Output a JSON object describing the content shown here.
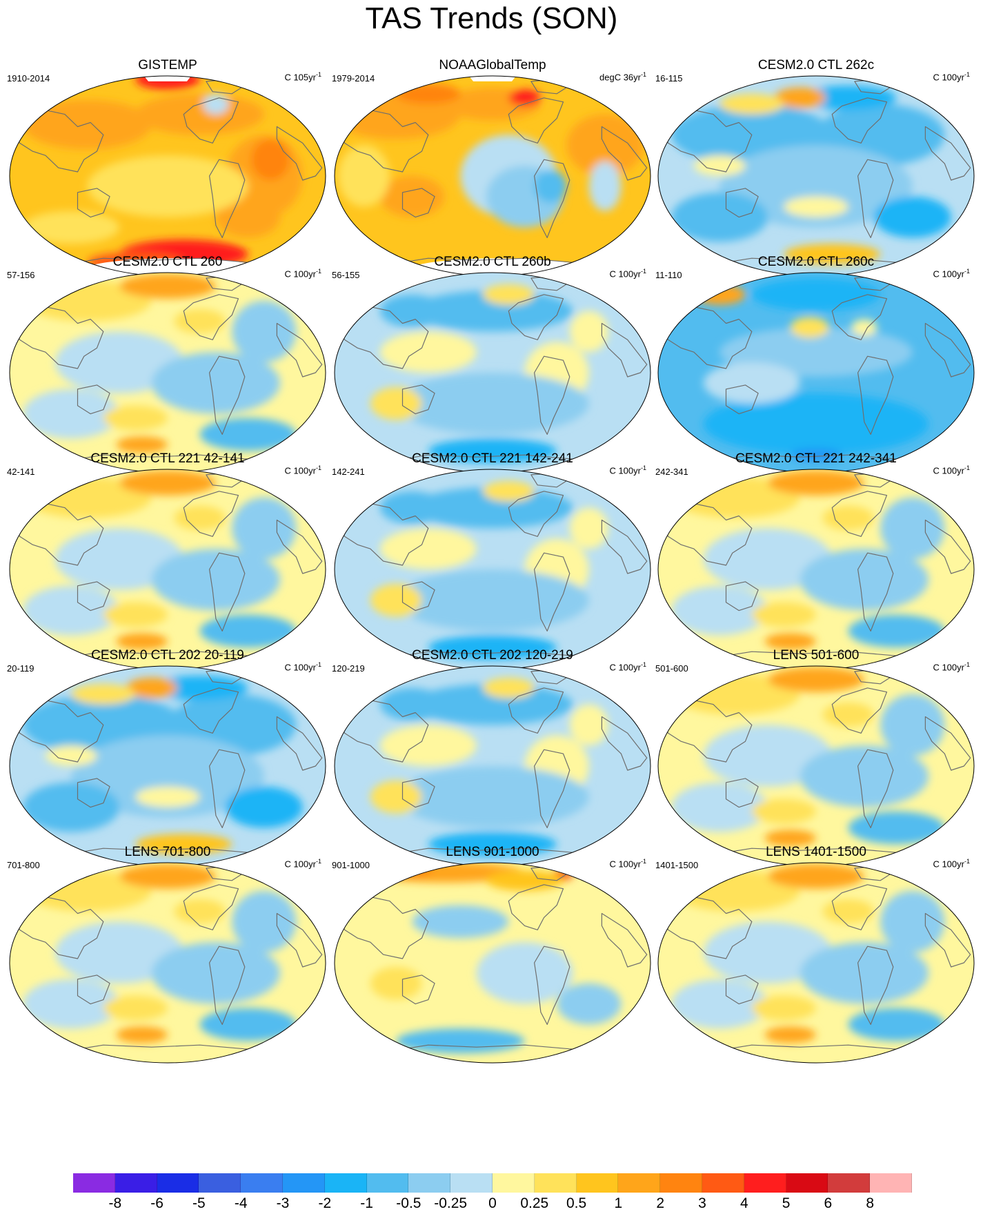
{
  "title": "TAS Trends (SON)",
  "panels": [
    {
      "title": "GISTEMP",
      "years": "1910-2014",
      "units": "C 105yr",
      "units_exp": "-1",
      "theme": "warm-strong",
      "missing_north": true,
      "missing_south": true
    },
    {
      "title": "NOAAGlobalTemp",
      "years": "1979-2014",
      "units": "degC 36yr",
      "units_exp": "-1",
      "theme": "noaa",
      "missing_north": true,
      "missing_south": true
    },
    {
      "title": "CESM2.0 CTL 262c",
      "years": "16-115",
      "units": "C 100yr",
      "units_exp": "-1",
      "theme": "cool"
    },
    {
      "title": "CESM2.0 CTL 260",
      "years": "57-156",
      "units": "C 100yr",
      "units_exp": "-1",
      "theme": "mixed-warm"
    },
    {
      "title": "CESM2.0 CTL 260b",
      "years": "56-155",
      "units": "C 100yr",
      "units_exp": "-1",
      "theme": "mixed-cool"
    },
    {
      "title": "CESM2.0 CTL 260c",
      "years": "11-110",
      "units": "C 100yr",
      "units_exp": "-1",
      "theme": "cool-strong"
    },
    {
      "title": "CESM2.0 CTL 221 42-141",
      "years": "42-141",
      "units": "C 100yr",
      "units_exp": "-1",
      "theme": "mixed-warm"
    },
    {
      "title": "CESM2.0 CTL 221 142-241",
      "years": "142-241",
      "units": "C 100yr",
      "units_exp": "-1",
      "theme": "mixed-cool"
    },
    {
      "title": "CESM2.0 CTL 221 242-341",
      "years": "242-341",
      "units": "C 100yr",
      "units_exp": "-1",
      "theme": "mixed-warm"
    },
    {
      "title": "CESM2.0 CTL 202 20-119",
      "years": "20-119",
      "units": "C 100yr",
      "units_exp": "-1",
      "theme": "cool"
    },
    {
      "title": "CESM2.0 CTL 202 120-219",
      "years": "120-219",
      "units": "C 100yr",
      "units_exp": "-1",
      "theme": "mixed-cool"
    },
    {
      "title": "LENS 501-600",
      "years": "501-600",
      "units": "C 100yr",
      "units_exp": "-1",
      "theme": "mixed-warm"
    },
    {
      "title": "LENS 701-800",
      "years": "701-800",
      "units": "C 100yr",
      "units_exp": "-1",
      "theme": "mixed-warm"
    },
    {
      "title": "LENS 901-1000",
      "years": "901-1000",
      "units": "C 100yr",
      "units_exp": "-1",
      "theme": "mixed-warm-north"
    },
    {
      "title": "LENS 1401-1500",
      "years": "1401-1500",
      "units": "C 100yr",
      "units_exp": "-1",
      "theme": "mixed-warm"
    }
  ],
  "colorbar": {
    "colors": [
      "#8a2be2",
      "#3a1ee6",
      "#1a2de6",
      "#3a5fe0",
      "#3a7ef0",
      "#2496f6",
      "#1ab4f6",
      "#52bcef",
      "#8ccdf0",
      "#b9dff3",
      "#fff79e",
      "#ffe25a",
      "#ffc51e",
      "#ffa51a",
      "#ff8410",
      "#ff5a14",
      "#ff1e1e",
      "#d90a14",
      "#d23c3c",
      "#ffb4b4"
    ],
    "labels": [
      "-8",
      "-6",
      "-5",
      "-4",
      "-3",
      "-2",
      "-1",
      "-0.5",
      "-0.25",
      "0",
      "0.25",
      "0.5",
      "1",
      "2",
      "3",
      "4",
      "5",
      "6",
      "8"
    ]
  }
}
